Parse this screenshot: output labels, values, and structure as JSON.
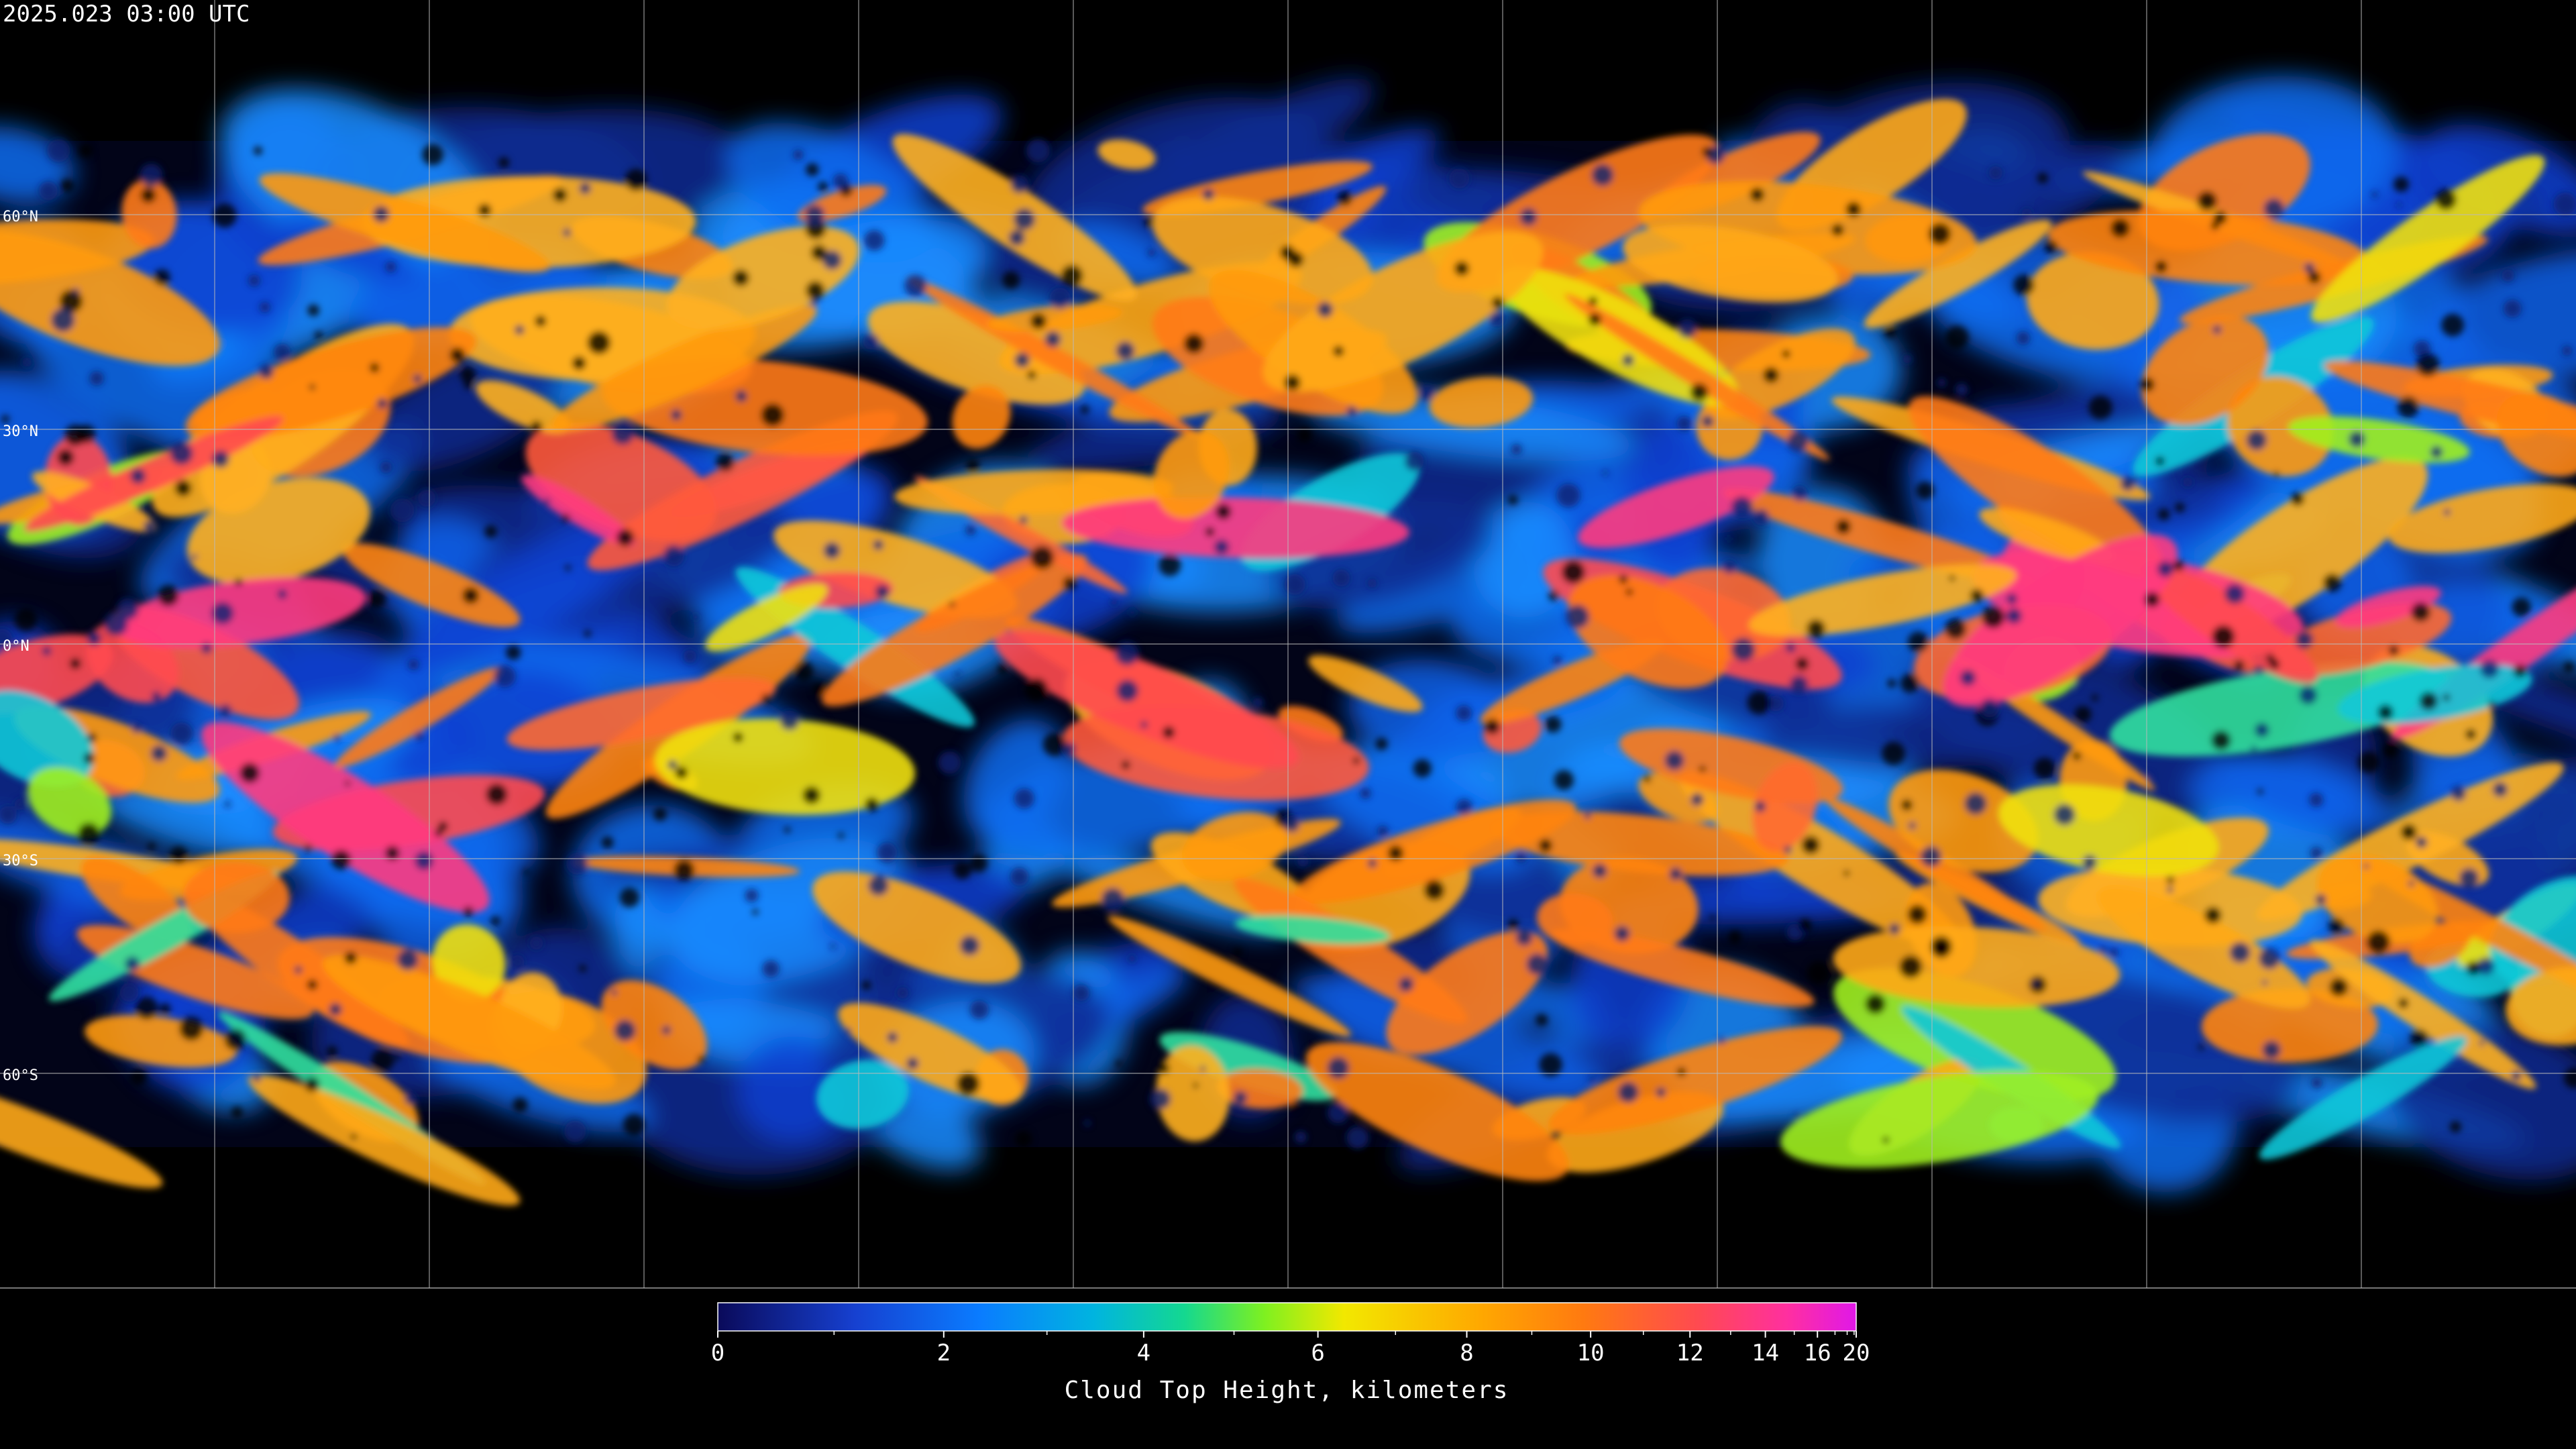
{
  "title": "2025.023 03:00 UTC",
  "map": {
    "latitude_labels": [
      "60°N",
      "30°N",
      "0°N",
      "30°S",
      "60°S"
    ]
  },
  "colorbar": {
    "label": "Cloud Top Height, kilometers",
    "range": [
      0,
      20
    ],
    "ticks": [
      0,
      2,
      4,
      6,
      8,
      10,
      12,
      14,
      16,
      20
    ],
    "minor_ticks": [
      1,
      3,
      5,
      7,
      9,
      11,
      13,
      15,
      17,
      18,
      19
    ]
  }
}
